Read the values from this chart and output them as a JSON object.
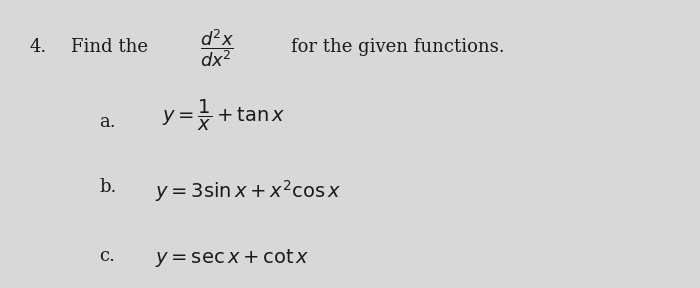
{
  "background_color": "#d8d8d8",
  "fig_width": 7.0,
  "fig_height": 2.88,
  "dpi": 100,
  "header_text": "Find the $\\dfrac{d^2x}{dx^2}$ for the given functions.",
  "number": "4.",
  "part_a_label": "a.",
  "part_a_formula": "$y = \\dfrac{1}{x} + \\tan x$",
  "part_b_label": "b.",
  "part_b_formula": "$y = 3\\sin x + x^2 \\cos x$",
  "part_c_label": "c.",
  "part_c_formula": "$y = \\sec x + \\cot x$",
  "text_color": "#1a1a1a",
  "faded_text_color": "#aaaaaa",
  "header_fontsize": 13,
  "formula_fontsize": 14,
  "label_fontsize": 13
}
